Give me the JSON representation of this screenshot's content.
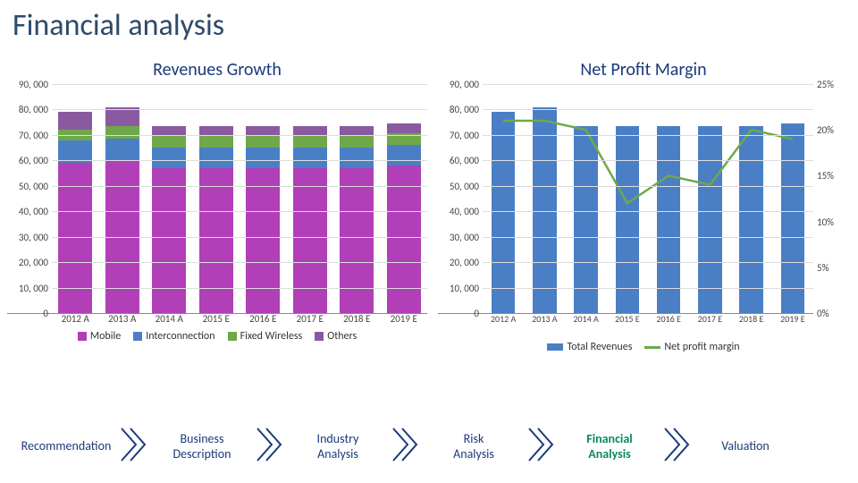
{
  "title": "Financial analysis",
  "colors": {
    "title_text": "#2e4a6a",
    "title_pill": "#1f9b6c",
    "nav_text": "#1a3a7a",
    "nav_active": "#0a8a5a",
    "grid": "#dddddd",
    "axis_text": "#444444"
  },
  "chart1": {
    "title": "Revenues Growth",
    "title_color": "#1a3a7a",
    "title_fontsize": 20,
    "type": "stacked-bar",
    "ylim": [
      0,
      90000
    ],
    "ytick_step": 10000,
    "y_labels": [
      "90, 000",
      "80, 000",
      "70, 000",
      "60, 000",
      "50, 000",
      "40, 000",
      "30, 000",
      "20, 000",
      "10, 000",
      "0"
    ],
    "categories": [
      "2012 A",
      "2013 A",
      "2014 A",
      "2015 E",
      "2016 E",
      "2017 E",
      "2018 E",
      "2019 E"
    ],
    "series": [
      {
        "name": "Mobile",
        "color": "#b03fb8",
        "values": [
          59000,
          60000,
          57000,
          57000,
          57000,
          57000,
          57000,
          58000
        ]
      },
      {
        "name": "Interconnection",
        "color": "#4a7fc6",
        "values": [
          9000,
          8500,
          8000,
          8000,
          8000,
          8000,
          8000,
          8000
        ]
      },
      {
        "name": "Fixed Wireless",
        "color": "#6fa84a",
        "values": [
          4000,
          5000,
          4500,
          4500,
          4500,
          4500,
          4500,
          4500
        ]
      },
      {
        "name": "Others",
        "color": "#8a5aa0",
        "values": [
          7000,
          7500,
          4000,
          4000,
          4000,
          4000,
          4000,
          4000
        ]
      }
    ]
  },
  "chart2": {
    "title": "Net Profit Margin",
    "title_color": "#1a3a7a",
    "title_fontsize": 20,
    "type": "bar-line",
    "ylim": [
      0,
      90000
    ],
    "ytick_step": 10000,
    "y_labels": [
      "90, 000",
      "80, 000",
      "70, 000",
      "60, 000",
      "50, 000",
      "40, 000",
      "30, 000",
      "20, 000",
      "10, 000",
      "0"
    ],
    "ylim_r": [
      0,
      25
    ],
    "ytick_step_r": 5,
    "yr_labels": [
      "25%",
      "20%",
      "15%",
      "10%",
      "5%",
      "0%"
    ],
    "categories": [
      "2012 A",
      "2013 A",
      "2014 A",
      "2015 E",
      "2016 E",
      "2017 E",
      "2018 E",
      "2019 E"
    ],
    "bars": {
      "name": "Total Revenues",
      "color": "#4a7fc6",
      "values": [
        79000,
        81000,
        73500,
        73500,
        73500,
        73500,
        73500,
        74500
      ]
    },
    "line": {
      "name": "Net profit margin",
      "color": "#6fa84a",
      "values": [
        21,
        21,
        20,
        12,
        15,
        14,
        20,
        19
      ]
    }
  },
  "legend2": {
    "items": [
      {
        "label": "Total Revenues",
        "color": "#4a7fc6",
        "type": "bar"
      },
      {
        "label": "Net profit margin",
        "color": "#6fa84a",
        "type": "line"
      }
    ]
  },
  "nav": {
    "chevron_color": "#1a3a7a",
    "items": [
      {
        "label": "Recommendation",
        "active": false
      },
      {
        "label": "Business Description",
        "active": false
      },
      {
        "label": "Industry Analysis",
        "active": false
      },
      {
        "label": "Risk Analysis",
        "active": false
      },
      {
        "label": "Financial Analysis",
        "active": true
      },
      {
        "label": "Valuation",
        "active": false
      }
    ]
  }
}
